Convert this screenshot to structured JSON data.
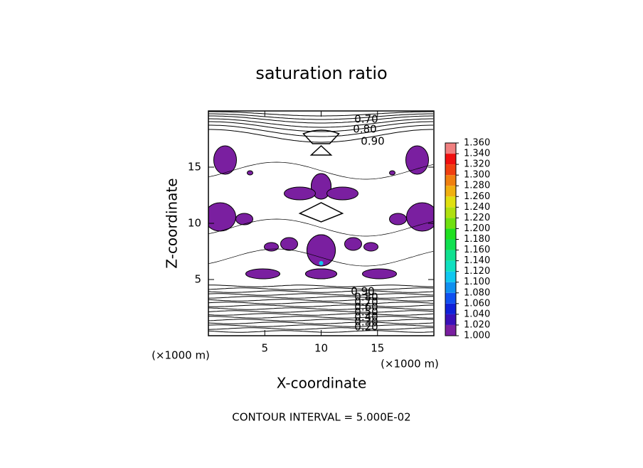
{
  "chart_data": {
    "type": "contour",
    "title": "saturation ratio",
    "x_label": "X-coordinate",
    "y_label": "Z-coordinate",
    "x_unit": "(×1000 m)",
    "y_unit": "(×1000 m)",
    "xlim": [
      0,
      20
    ],
    "ylim": [
      0,
      20
    ],
    "xticks": [
      5,
      10,
      15
    ],
    "yticks": [
      5,
      10,
      15
    ],
    "fill_color": "#7a1fa0",
    "line_color": "#000000",
    "contour_labels": [
      {
        "value": 0.7,
        "label": "0.70"
      },
      {
        "value": 0.8,
        "label": "0.80"
      },
      {
        "value": 0.9,
        "label": "0.90"
      },
      {
        "value": 0.9,
        "label": "0.90"
      },
      {
        "value": 0.8,
        "label": "0.80"
      },
      {
        "value": 0.7,
        "label": "0.70"
      },
      {
        "value": 0.6,
        "label": "0.60"
      },
      {
        "value": 0.5,
        "label": "0.50"
      },
      {
        "value": 0.4,
        "label": "0.40"
      },
      {
        "value": 0.3,
        "label": "0.30"
      },
      {
        "value": 0.2,
        "label": "0.20"
      }
    ],
    "colorbar": {
      "ticks": [
        {
          "value": 1.0,
          "label": "1.000"
        },
        {
          "value": 1.02,
          "label": "1.020"
        },
        {
          "value": 1.04,
          "label": "1.040"
        },
        {
          "value": 1.06,
          "label": "1.060"
        },
        {
          "value": 1.08,
          "label": "1.080"
        },
        {
          "value": 1.1,
          "label": "1.100"
        },
        {
          "value": 1.12,
          "label": "1.120"
        },
        {
          "value": 1.14,
          "label": "1.140"
        },
        {
          "value": 1.16,
          "label": "1.160"
        },
        {
          "value": 1.18,
          "label": "1.180"
        },
        {
          "value": 1.2,
          "label": "1.200"
        },
        {
          "value": 1.22,
          "label": "1.220"
        },
        {
          "value": 1.24,
          "label": "1.240"
        },
        {
          "value": 1.26,
          "label": "1.260"
        },
        {
          "value": 1.28,
          "label": "1.280"
        },
        {
          "value": 1.3,
          "label": "1.300"
        },
        {
          "value": 1.32,
          "label": "1.320"
        },
        {
          "value": 1.34,
          "label": "1.340"
        },
        {
          "value": 1.36,
          "label": "1.360"
        }
      ],
      "colors": [
        "#7a1fa0",
        "#3a10b8",
        "#1020d8",
        "#1050f0",
        "#1090f0",
        "#10c8f0",
        "#10e0c0",
        "#10e090",
        "#10e050",
        "#20e020",
        "#70e010",
        "#b0e010",
        "#e0e010",
        "#f0b010",
        "#f08010",
        "#f04010",
        "#f01010",
        "#f08080"
      ]
    },
    "footnote": "CONTOUR INTERVAL = 5.000E-02"
  }
}
